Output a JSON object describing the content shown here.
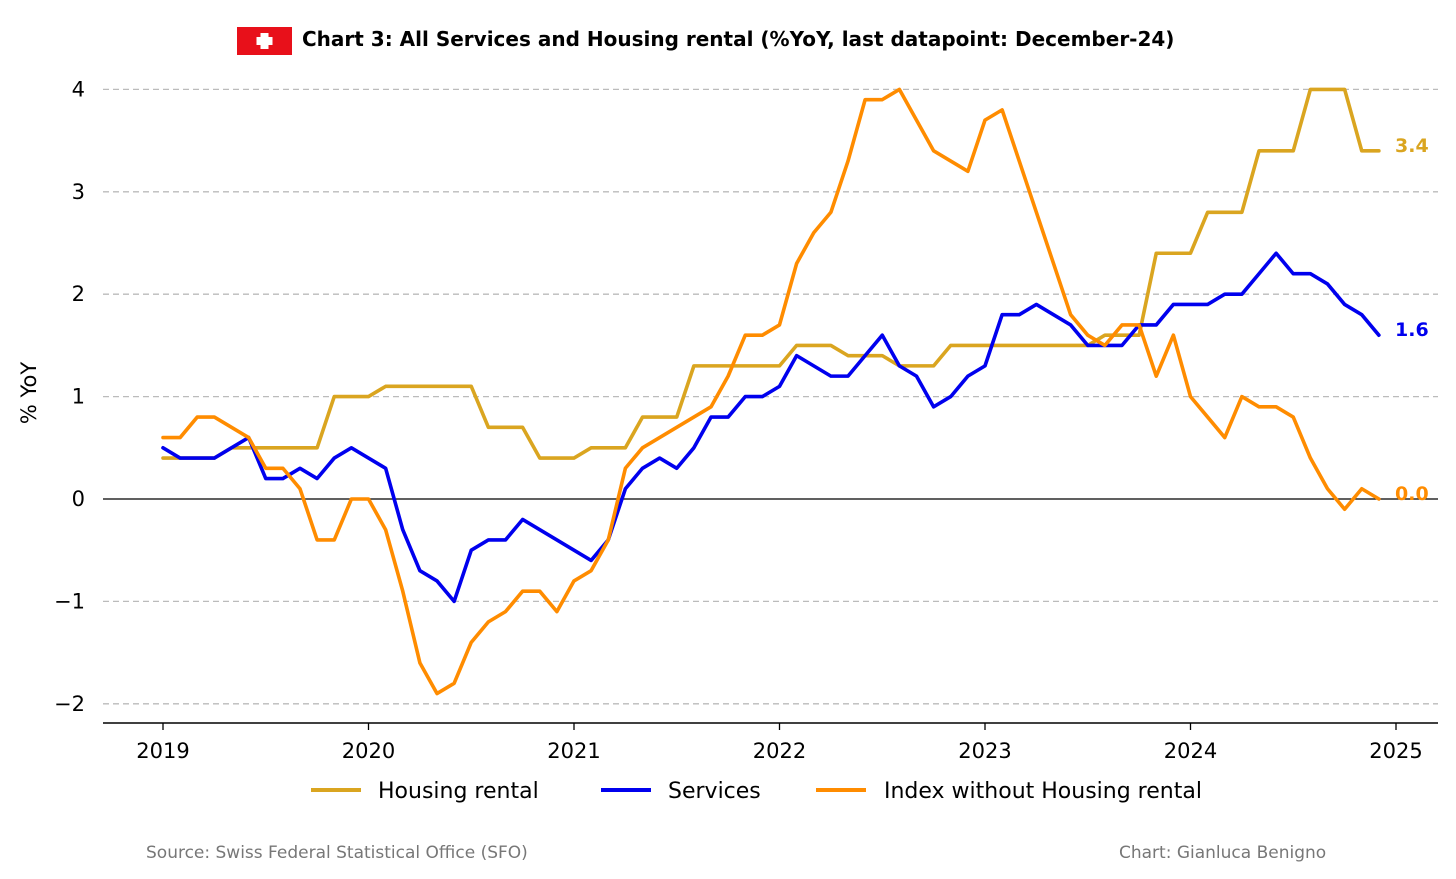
{
  "chart_data": {
    "type": "line",
    "title": "Chart 3: All Services and Housing rental (%YoY, last datapoint: December-24)",
    "flag": "swiss-flag",
    "ylabel": "% YoY",
    "xlabel": "",
    "ylim": [
      -2.2,
      4.2
    ],
    "xlim": [
      "2018-09",
      "2025-03"
    ],
    "grid": "horizontal-dashed",
    "legend_position": "bottom-center",
    "x_ticks": [
      {
        "date": "2019-01",
        "label": "2019"
      },
      {
        "date": "2020-01",
        "label": "2020"
      },
      {
        "date": "2021-01",
        "label": "2021"
      },
      {
        "date": "2022-01",
        "label": "2022"
      },
      {
        "date": "2023-01",
        "label": "2023"
      },
      {
        "date": "2024-01",
        "label": "2024"
      },
      {
        "date": "2025-01",
        "label": "2025"
      }
    ],
    "y_ticks": [
      {
        "value": 4,
        "label": "4"
      },
      {
        "value": 3,
        "label": "3"
      },
      {
        "value": 2,
        "label": "2"
      },
      {
        "value": 1,
        "label": "1"
      },
      {
        "value": 0,
        "label": "0"
      },
      {
        "value": -1,
        "label": "−1"
      },
      {
        "value": -2,
        "label": "−2"
      }
    ],
    "x_start": "2019-01",
    "x_frequency": "monthly",
    "series": [
      {
        "name": "Housing rental",
        "color": "#DAA520",
        "end_label": "3.4",
        "values": [
          0.4,
          0.4,
          0.4,
          0.4,
          0.5,
          0.5,
          0.5,
          0.5,
          0.5,
          0.5,
          1.0,
          1.0,
          1.0,
          1.1,
          1.1,
          1.1,
          1.1,
          1.1,
          1.1,
          0.7,
          0.7,
          0.7,
          0.4,
          0.4,
          0.4,
          0.5,
          0.5,
          0.5,
          0.8,
          0.8,
          0.8,
          1.3,
          1.3,
          1.3,
          1.3,
          1.3,
          1.3,
          1.5,
          1.5,
          1.5,
          1.4,
          1.4,
          1.4,
          1.3,
          1.3,
          1.3,
          1.5,
          1.5,
          1.5,
          1.5,
          1.5,
          1.5,
          1.5,
          1.5,
          1.5,
          1.6,
          1.6,
          1.6,
          2.4,
          2.4,
          2.4,
          2.8,
          2.8,
          2.8,
          3.4,
          3.4,
          3.4,
          4.0,
          4.0,
          4.0,
          3.4,
          3.4
        ]
      },
      {
        "name": "Services",
        "color": "#0000EE",
        "end_label": "1.6",
        "values": [
          0.5,
          0.4,
          0.4,
          0.4,
          0.5,
          0.6,
          0.2,
          0.2,
          0.3,
          0.2,
          0.4,
          0.5,
          0.4,
          0.3,
          -0.3,
          -0.7,
          -0.8,
          -1.0,
          -0.5,
          -0.4,
          -0.4,
          -0.2,
          -0.3,
          -0.4,
          -0.5,
          -0.6,
          -0.4,
          0.1,
          0.3,
          0.4,
          0.3,
          0.5,
          0.8,
          0.8,
          1.0,
          1.0,
          1.1,
          1.4,
          1.3,
          1.2,
          1.2,
          1.4,
          1.6,
          1.3,
          1.2,
          0.9,
          1.0,
          1.2,
          1.3,
          1.8,
          1.8,
          1.9,
          1.8,
          1.7,
          1.5,
          1.5,
          1.5,
          1.7,
          1.7,
          1.9,
          1.9,
          1.9,
          2.0,
          2.0,
          2.2,
          2.4,
          2.2,
          2.2,
          2.1,
          1.9,
          1.8,
          1.6
        ]
      },
      {
        "name": "Index without Housing rental",
        "color": "#FF8C00",
        "end_label": "0.0",
        "values": [
          0.6,
          0.6,
          0.8,
          0.8,
          0.7,
          0.6,
          0.3,
          0.3,
          0.1,
          -0.4,
          -0.4,
          0.0,
          0.0,
          -0.3,
          -0.9,
          -1.6,
          -1.9,
          -1.8,
          -1.4,
          -1.2,
          -1.1,
          -0.9,
          -0.9,
          -1.1,
          -0.8,
          -0.7,
          -0.4,
          0.3,
          0.5,
          0.6,
          0.7,
          0.8,
          0.9,
          1.2,
          1.6,
          1.6,
          1.7,
          2.3,
          2.6,
          2.8,
          3.3,
          3.9,
          3.9,
          4.0,
          3.7,
          3.4,
          3.3,
          3.2,
          3.7,
          3.8,
          3.3,
          2.8,
          2.3,
          1.8,
          1.6,
          1.5,
          1.7,
          1.7,
          1.2,
          1.6,
          1.0,
          0.8,
          0.6,
          1.0,
          0.9,
          0.9,
          0.8,
          0.4,
          0.1,
          -0.1,
          0.1,
          0.0
        ]
      }
    ]
  },
  "footer": {
    "source": "Source: Swiss Federal Statistical Office (SFO)",
    "credit": "Chart: Gianluca Benigno"
  }
}
